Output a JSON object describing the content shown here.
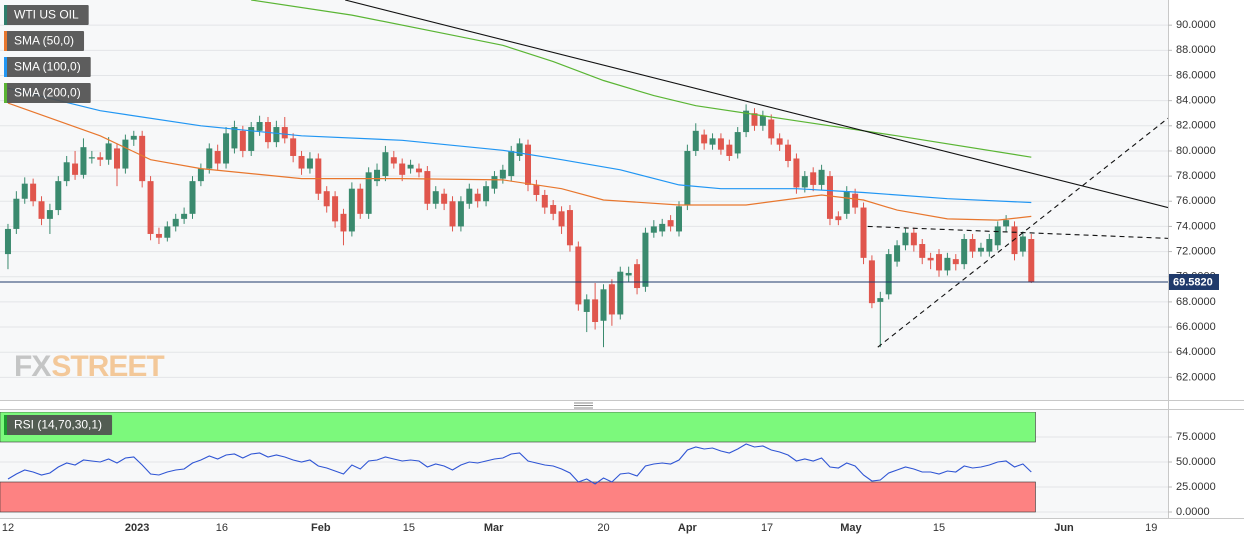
{
  "chart_data": [
    {
      "type": "candlestick",
      "name": "WTI US OIL",
      "legend_color": "#2e7d6b",
      "up_color": "#3a8a6e",
      "down_color": "#e0564d",
      "xlim": [
        -0.95,
        138.3
      ],
      "ylim": [
        60.2,
        92.0
      ],
      "yticks": [
        {
          "value": 62,
          "label": "62.0000"
        },
        {
          "value": 64,
          "label": "64.0000"
        },
        {
          "value": 66,
          "label": "66.0000"
        },
        {
          "value": 68,
          "label": "68.0000"
        },
        {
          "value": 70,
          "label": "70.0000"
        },
        {
          "value": 72,
          "label": "72.0000"
        },
        {
          "value": 74,
          "label": "74.0000"
        },
        {
          "value": 76,
          "label": "76.0000"
        },
        {
          "value": 78,
          "label": "78.0000"
        },
        {
          "value": 80,
          "label": "80.0000"
        },
        {
          "value": 82,
          "label": "82.0000"
        },
        {
          "value": 84,
          "label": "84.0000"
        },
        {
          "value": 86,
          "label": "86.0000"
        },
        {
          "value": 88,
          "label": "88.0000"
        },
        {
          "value": 90,
          "label": "90.0000"
        }
      ],
      "grid": true,
      "open": [
        71.8,
        73.8,
        76.2,
        77.4,
        76.0,
        74.6,
        75.3,
        77.6,
        79.0,
        78.1,
        79.4,
        79.5,
        79.3,
        80.2,
        78.6,
        80.9,
        81.2,
        77.6,
        73.4,
        73.1,
        74.0,
        74.6,
        75.0,
        77.6,
        78.6,
        80.0,
        79.0,
        80.2,
        81.6,
        80.0,
        81.6,
        82.3,
        80.7,
        81.9,
        81.0,
        79.6,
        78.6,
        79.4,
        76.8,
        76.4,
        75.0,
        73.6,
        77.0,
        75.0,
        77.6,
        78.0,
        79.5,
        79.0,
        78.6,
        78.6,
        78.4,
        75.8,
        76.6,
        76.0,
        74.0,
        75.8,
        76.6,
        76.0,
        77.0,
        77.8,
        78.0,
        79.6,
        80.5,
        77.3,
        76.5,
        75.7,
        75.2,
        75.3,
        72.4,
        67.2,
        68.2,
        66.5,
        69.4,
        67.0,
        70.1,
        71.0,
        69.2,
        73.5,
        73.6,
        74.5,
        73.6,
        75.7,
        80.0,
        81.3,
        80.5,
        81.0,
        80.5,
        79.8,
        81.5,
        83.0,
        82.0,
        82.5,
        81.0,
        80.5,
        79.4,
        77.1,
        78.3,
        77.3,
        78.0,
        74.8,
        75.0,
        76.6,
        75.5,
        71.3,
        68.0,
        68.6,
        71.2,
        72.5,
        73.5,
        72.6,
        71.5,
        71.8,
        70.5,
        71.4,
        71.0,
        73.0,
        72.0,
        72.0,
        72.5,
        74.0,
        74.0,
        72.0,
        73.0
      ],
      "high": [
        74.2,
        76.8,
        77.9,
        77.8,
        76.4,
        75.8,
        78.0,
        79.6,
        80.0,
        81.0,
        80.0,
        79.9,
        81.1,
        80.6,
        81.3,
        81.6,
        81.6,
        78.0,
        73.9,
        74.4,
        75.0,
        75.5,
        78.0,
        79.0,
        80.6,
        80.5,
        81.9,
        82.4,
        82.0,
        82.3,
        82.8,
        82.7,
        82.4,
        82.7,
        81.4,
        80.0,
        79.9,
        79.8,
        77.2,
        76.8,
        75.4,
        77.5,
        77.4,
        78.7,
        79.0,
        80.4,
        80.0,
        79.4,
        79.3,
        79.0,
        78.8,
        77.2,
        77.0,
        76.4,
        76.4,
        77.4,
        77.0,
        77.6,
        78.4,
        78.9,
        80.4,
        81.0,
        80.9,
        77.7,
        76.9,
        76.1,
        75.6,
        75.7,
        72.8,
        68.6,
        69.5,
        69.4,
        69.8,
        70.8,
        70.8,
        71.4,
        73.9,
        74.5,
        74.6,
        74.9,
        76.0,
        80.5,
        82.2,
        81.7,
        81.4,
        81.4,
        80.9,
        81.9,
        83.7,
        83.4,
        83.2,
        82.9,
        81.4,
        80.9,
        79.8,
        78.4,
        78.7,
        78.9,
        78.4,
        75.2,
        77.2,
        77.0,
        75.9,
        71.7,
        68.8,
        72.2,
        72.9,
        73.9,
        73.9,
        73.0,
        71.9,
        72.2,
        71.9,
        71.8,
        73.4,
        73.4,
        72.7,
        73.4,
        74.4,
        74.9,
        74.4,
        73.6,
        73.4
      ],
      "low": [
        70.6,
        73.4,
        75.8,
        75.6,
        74.1,
        73.4,
        74.9,
        77.2,
        77.7,
        77.8,
        79.0,
        78.8,
        78.9,
        77.2,
        78.2,
        80.4,
        77.1,
        72.9,
        72.6,
        72.8,
        73.6,
        74.2,
        74.6,
        77.2,
        78.2,
        78.5,
        78.6,
        79.8,
        79.5,
        79.6,
        81.2,
        80.2,
        80.3,
        80.6,
        79.1,
        78.1,
        78.2,
        76.1,
        75.1,
        73.9,
        72.5,
        73.2,
        74.6,
        74.6,
        77.2,
        77.6,
        78.6,
        77.6,
        78.2,
        77.9,
        75.3,
        75.4,
        75.3,
        73.6,
        73.6,
        75.4,
        75.5,
        75.6,
        76.6,
        77.4,
        77.6,
        79.2,
        76.8,
        76.0,
        75.0,
        74.5,
        73.4,
        72.0,
        67.3,
        65.6,
        65.8,
        64.4,
        66.1,
        66.6,
        69.6,
        68.6,
        68.8,
        73.1,
        73.2,
        73.6,
        73.2,
        75.3,
        79.6,
        80.1,
        80.1,
        79.7,
        79.2,
        79.4,
        81.1,
        81.6,
        81.6,
        80.5,
        80.0,
        78.7,
        76.6,
        76.7,
        76.8,
        76.9,
        74.1,
        74.1,
        74.6,
        75.0,
        71.0,
        67.5,
        64.4,
        68.2,
        70.8,
        72.1,
        72.0,
        71.0,
        70.6,
        70.0,
        70.1,
        70.5,
        70.6,
        71.5,
        71.6,
        71.6,
        72.1,
        73.6,
        71.3,
        71.6,
        69.5
      ],
      "close": [
        73.8,
        76.2,
        77.4,
        76.0,
        74.6,
        75.3,
        77.6,
        79.1,
        78.1,
        80.3,
        79.5,
        79.3,
        80.6,
        78.6,
        80.9,
        81.2,
        77.6,
        73.4,
        73.1,
        74.0,
        74.6,
        75.0,
        77.6,
        78.6,
        80.2,
        79.0,
        81.4,
        81.9,
        80.0,
        81.9,
        82.3,
        80.7,
        81.9,
        81.0,
        79.6,
        78.6,
        79.4,
        76.6,
        75.6,
        74.4,
        73.6,
        77.0,
        75.0,
        78.3,
        78.5,
        79.9,
        79.0,
        78.1,
        78.9,
        78.3,
        75.8,
        76.8,
        75.8,
        74.0,
        76.0,
        77.0,
        76.0,
        77.2,
        78.0,
        78.5,
        80.0,
        80.6,
        77.3,
        76.5,
        75.5,
        75.0,
        74.0,
        72.5,
        67.8,
        68.2,
        66.4,
        69.0,
        67.0,
        70.4,
        70.3,
        69.1,
        73.5,
        74.0,
        74.2,
        74.0,
        75.6,
        80.0,
        81.6,
        80.6,
        81.0,
        80.1,
        79.6,
        81.5,
        83.2,
        82.0,
        82.8,
        81.0,
        80.5,
        79.2,
        77.1,
        78.0,
        77.3,
        78.5,
        74.6,
        74.5,
        76.8,
        75.5,
        71.5,
        67.9,
        68.3,
        71.8,
        72.5,
        73.5,
        72.5,
        71.5,
        71.3,
        70.5,
        71.5,
        71.0,
        73.0,
        72.0,
        72.3,
        73.0,
        74.0,
        74.5,
        71.8,
        73.2,
        69.58
      ],
      "series": [
        {
          "name": "SMA (50,0)",
          "color": "#e8772e",
          "x": [
            0,
            11,
            17,
            23,
            35,
            47,
            59,
            66,
            71,
            80,
            88,
            97,
            102,
            106,
            112,
            118,
            122
          ],
          "values": [
            83.8,
            81.2,
            79.3,
            78.6,
            77.8,
            77.8,
            77.7,
            77.0,
            76.1,
            75.7,
            75.7,
            76.5,
            76.1,
            75.3,
            74.6,
            74.5,
            74.8
          ]
        },
        {
          "name": "SMA (100,0)",
          "color": "#2196f3",
          "x": [
            0,
            11,
            23,
            35,
            47,
            59,
            66,
            73,
            80,
            85,
            94,
            102,
            112,
            122
          ],
          "values": [
            85.0,
            83.2,
            82.0,
            81.2,
            80.85,
            80.05,
            79.3,
            78.5,
            77.3,
            77.0,
            77.0,
            76.7,
            76.2,
            75.9
          ]
        },
        {
          "name": "SMA (200,0)",
          "color": "#5ab534",
          "x": [
            29,
            41,
            53,
            59,
            65,
            71,
            77,
            82,
            94,
            106,
            122
          ],
          "values": [
            92.0,
            90.8,
            89.2,
            88.4,
            87.1,
            85.6,
            84.4,
            83.6,
            82.4,
            81.2,
            79.5
          ]
        }
      ],
      "trendlines": [
        {
          "x": [
            40.2,
            138.3
          ],
          "values": [
            92.0,
            75.5
          ],
          "style": "solid"
        },
        {
          "x": [
            103.7,
            138.3
          ],
          "values": [
            64.4,
            82.6
          ],
          "style": "dashed"
        },
        {
          "x": [
            102.5,
            138.3
          ],
          "values": [
            74.0,
            73.05
          ],
          "style": "dashed"
        }
      ],
      "last_price": 69.582,
      "last_price_label": "69.5820",
      "last_price_color": "#1f3a6b",
      "watermark": [
        "FX",
        "STREET"
      ]
    },
    {
      "type": "line",
      "name": "RSI (14,70,30,1)",
      "legend_color": "#1a9e2e",
      "color": "#2f55d4",
      "xlim": [
        -0.95,
        138.3
      ],
      "ylim": [
        -5,
        100
      ],
      "yticks": [
        {
          "value": 0,
          "label": "0.0000"
        },
        {
          "value": 25,
          "label": "25.0000"
        },
        {
          "value": 50,
          "label": "50.0000"
        },
        {
          "value": 75,
          "label": "75.0000"
        }
      ],
      "grid": true,
      "overbought": [
        70,
        100
      ],
      "overbought_color": "#7cf97c",
      "oversold": [
        0,
        30
      ],
      "oversold_color": "#fd8282",
      "values": [
        33,
        38,
        42,
        40,
        37,
        39,
        45,
        49,
        47,
        52,
        51,
        50,
        53,
        49,
        54,
        55,
        47,
        38,
        37,
        40,
        42,
        43,
        49,
        52,
        56,
        53,
        57,
        58,
        54,
        58,
        59,
        55,
        57,
        55,
        52,
        50,
        52,
        46,
        44,
        41,
        38,
        47,
        43,
        51,
        52,
        55,
        53,
        51,
        52,
        51,
        45,
        48,
        46,
        42,
        47,
        50,
        49,
        51,
        53,
        54,
        58,
        59,
        51,
        49,
        47,
        46,
        43,
        39,
        30,
        33,
        28,
        34,
        30,
        38,
        39,
        36,
        46,
        48,
        49,
        48,
        52,
        62,
        65,
        63,
        64,
        61,
        59,
        63,
        68,
        65,
        66,
        62,
        60,
        57,
        51,
        53,
        51,
        54,
        45,
        44,
        49,
        46,
        37,
        31,
        32,
        39,
        42,
        45,
        43,
        40,
        40,
        38,
        41,
        40,
        46,
        44,
        45,
        47,
        50,
        51,
        45,
        48,
        40
      ],
      "xticks": [
        {
          "value": 0,
          "label": "12"
        },
        {
          "value": 15.4,
          "label": "2023",
          "bold": true
        },
        {
          "value": 25.5,
          "label": "16"
        },
        {
          "value": 37.3,
          "label": "Feb",
          "bold": true
        },
        {
          "value": 47.8,
          "label": "15"
        },
        {
          "value": 57.9,
          "label": "Mar",
          "bold": true
        },
        {
          "value": 71,
          "label": "20"
        },
        {
          "value": 81,
          "label": "Apr",
          "bold": true
        },
        {
          "value": 90.5,
          "label": "17"
        },
        {
          "value": 100.5,
          "label": "May",
          "bold": true
        },
        {
          "value": 111,
          "label": "15"
        },
        {
          "value": 125.9,
          "label": "Jun",
          "bold": true
        },
        {
          "value": 136.3,
          "label": "19"
        }
      ]
    }
  ]
}
